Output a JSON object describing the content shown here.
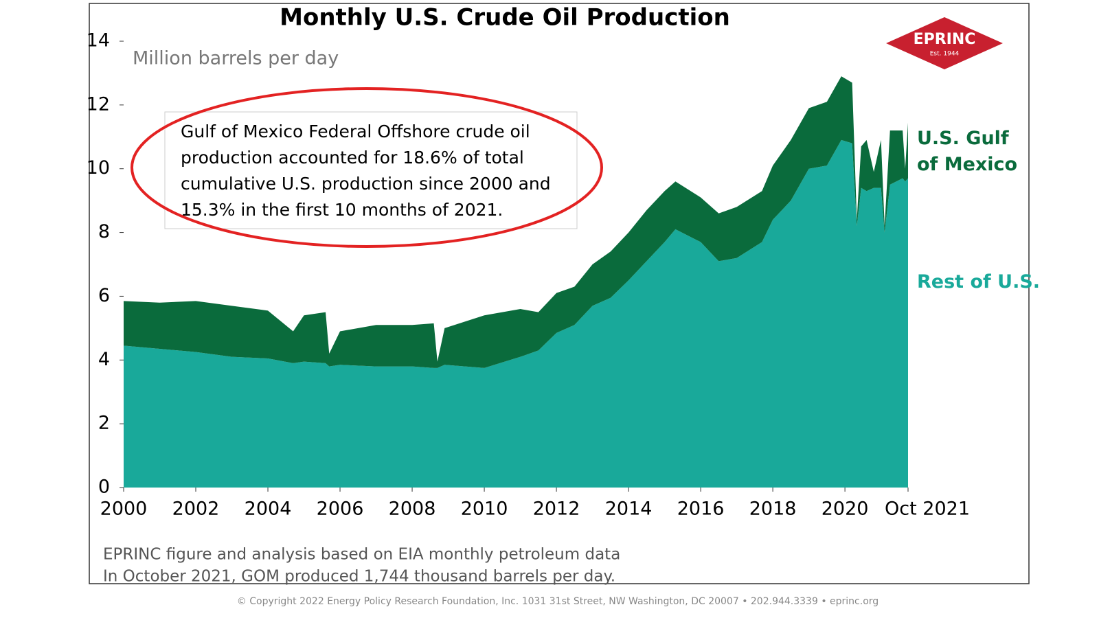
{
  "chart_data": {
    "type": "stacked-area",
    "title": "Monthly U.S. Crude Oil Production",
    "subtitle": "Million barrels per day",
    "annotation": [
      "Gulf of Mexico Federal Offshore crude oil",
      "production accounted for 18.6% of total",
      "cumulative U.S. production since 2000 and",
      "15.3% in the first 10 months of 2021."
    ],
    "notes": [
      "EPRINC figure and analysis based on EIA monthly petroleum data",
      "In October 2021, GOM produced 1,744 thousand barrels per day."
    ],
    "copyright": "© Copyright 2022 Energy Policy Research Foundation, Inc. 1031 31st Street, NW Washington, DC 20007 • 202.944.3339 • eprinc.org",
    "logo": {
      "name": "EPRINC",
      "established": "Est. 1944"
    },
    "x": [
      2000,
      2001,
      2002,
      2003,
      2004,
      2004.7,
      2005,
      2005.6,
      2005.7,
      2006,
      2007,
      2008,
      2008.6,
      2008.7,
      2008.9,
      2010,
      2011,
      2011.5,
      2012,
      2012.5,
      2013,
      2013.5,
      2014,
      2014.5,
      2015,
      2015.3,
      2016,
      2016.5,
      2017,
      2017.7,
      2018,
      2018.5,
      2019,
      2019.5,
      2019.9,
      2020.2,
      2020.33,
      2020.45,
      2020.6,
      2020.8,
      2021,
      2021.1,
      2021.25,
      2021.6,
      2021.67,
      2021.75
    ],
    "series": [
      {
        "name": "Rest of U.S.",
        "color": "#19a99a",
        "values": [
          4.45,
          4.35,
          4.25,
          4.1,
          4.05,
          3.9,
          3.95,
          3.9,
          3.8,
          3.85,
          3.8,
          3.8,
          3.75,
          3.75,
          3.85,
          3.75,
          4.1,
          4.3,
          4.85,
          5.1,
          5.7,
          5.95,
          6.5,
          7.1,
          7.7,
          8.1,
          7.7,
          7.1,
          7.2,
          7.7,
          8.4,
          9.0,
          10.0,
          10.1,
          10.9,
          10.8,
          8.2,
          9.4,
          9.3,
          9.4,
          9.4,
          8.0,
          9.5,
          9.7,
          9.6,
          9.7
        ]
      },
      {
        "name": "U.S. Gulf of Mexico",
        "color": "#0a6b3c",
        "values": [
          1.4,
          1.45,
          1.6,
          1.6,
          1.5,
          1.0,
          1.45,
          1.6,
          0.4,
          1.05,
          1.3,
          1.3,
          1.4,
          0.2,
          1.15,
          1.65,
          1.5,
          1.2,
          1.25,
          1.2,
          1.3,
          1.45,
          1.5,
          1.6,
          1.6,
          1.5,
          1.4,
          1.5,
          1.6,
          1.6,
          1.7,
          1.9,
          1.9,
          2.0,
          2.0,
          1.9,
          0.2,
          1.3,
          1.6,
          0.5,
          1.5,
          0.2,
          1.7,
          1.5,
          0.4,
          1.744
        ]
      }
    ],
    "xlim": [
      2000,
      2021.75
    ],
    "xticks": [
      2000,
      2002,
      2004,
      2006,
      2008,
      2010,
      2012,
      2014,
      2016,
      2018,
      2020,
      {
        "value": 2021.75,
        "label": "Oct 2021"
      }
    ],
    "ylim": [
      0,
      14
    ],
    "yticks": [
      0,
      2,
      4,
      6,
      8,
      10,
      12,
      14
    ]
  }
}
